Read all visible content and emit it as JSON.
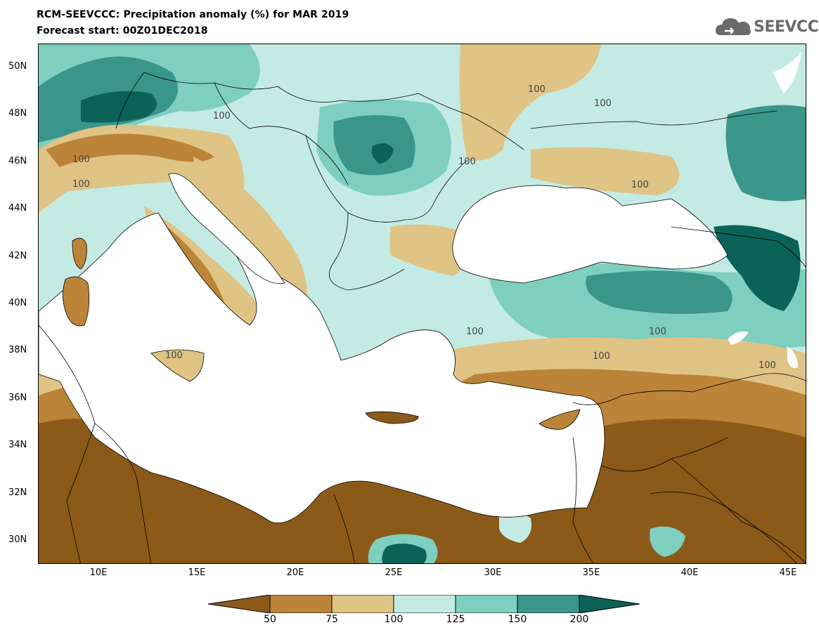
{
  "title": {
    "line1": "RCM-SEEVCCC: Precipitation anomaly (%) for MAR 2019",
    "line2": "Forecast start: 00Z01DEC2018"
  },
  "logo": {
    "text": "SEEVCCC",
    "icon": "cloud-icon"
  },
  "map": {
    "latitude_labels": [
      "50N",
      "48N",
      "46N",
      "44N",
      "42N",
      "40N",
      "38N",
      "36N",
      "34N",
      "32N",
      "30N"
    ],
    "longitude_labels": [
      "10E",
      "15E",
      "20E",
      "25E",
      "30E",
      "35E",
      "40E",
      "45E"
    ],
    "contour_labels": [
      "100",
      "100",
      "100",
      "100",
      "100",
      "100",
      "100",
      "100",
      "100",
      "100",
      "100",
      "100"
    ]
  },
  "colorbar": {
    "labels": [
      "50",
      "75",
      "100",
      "125",
      "150",
      "200"
    ],
    "colors": [
      "#8b5a19",
      "#bb8438",
      "#dfc485",
      "#c4ebe3",
      "#7ecfbf",
      "#3a958a",
      "#0a6258"
    ]
  },
  "colors": {
    "very_dry": "#8b5a19",
    "dry": "#bb8438",
    "slightly_dry": "#dfc485",
    "slightly_wet": "#c4ebe3",
    "wet": "#7ecfbf",
    "very_wet": "#3a958a",
    "extreme_wet": "#0a6258",
    "sea": "#ffffff"
  }
}
